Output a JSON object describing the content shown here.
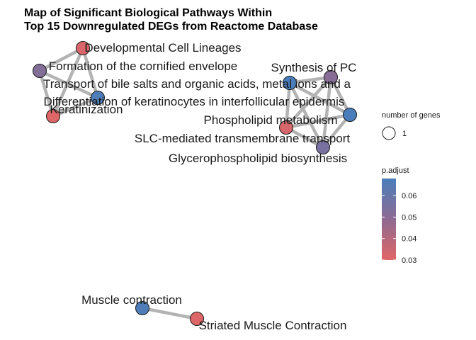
{
  "chart_data": {
    "type": "network",
    "title_lines": [
      "Map of Significant Biological Pathways Within",
      "Top 15 Downregulated DEGs from Reactome Database"
    ],
    "nodes": [
      {
        "id": "dcl",
        "label": "Developmental Cell Lineages",
        "p_adjust": 0.032
      },
      {
        "id": "fce",
        "label": "Formation of the cornified envelope",
        "p_adjust": 0.052
      },
      {
        "id": "tbs",
        "label": "Transport of bile salts and organic acids, metal ions and a",
        "p_adjust": 0.067
      },
      {
        "id": "dki",
        "label": "Differentiation of keratinocytes in interfollicular epidermis",
        "p_adjust": 0.068
      },
      {
        "id": "ker",
        "label": "Keratinization",
        "p_adjust": 0.031
      },
      {
        "id": "spc",
        "label": "Synthesis of PC",
        "p_adjust": 0.051
      },
      {
        "id": "pm",
        "label": "Phospholipid metabolism",
        "p_adjust": 0.068
      },
      {
        "id": "slc",
        "label": "SLC-mediated transmembrane transport",
        "p_adjust": 0.032
      },
      {
        "id": "gpb",
        "label": "Glycerophospholipid biosynthesis",
        "p_adjust": 0.055
      },
      {
        "id": "mc",
        "label": "Muscle contraction",
        "p_adjust": 0.067
      },
      {
        "id": "smc",
        "label": "Striated Muscle Contraction",
        "p_adjust": 0.031
      }
    ],
    "edges": [
      [
        "dcl",
        "fce"
      ],
      [
        "dcl",
        "ker"
      ],
      [
        "dcl",
        "tbs"
      ],
      [
        "fce",
        "ker"
      ],
      [
        "fce",
        "tbs"
      ],
      [
        "ker",
        "tbs"
      ],
      [
        "spc",
        "slc"
      ],
      [
        "spc",
        "pm"
      ],
      [
        "spc",
        "gpb"
      ],
      [
        "spc",
        "dki"
      ],
      [
        "slc",
        "pm"
      ],
      [
        "slc",
        "gpb"
      ],
      [
        "slc",
        "dki"
      ],
      [
        "pm",
        "gpb"
      ],
      [
        "pm",
        "dki"
      ],
      [
        "gpb",
        "dki"
      ],
      [
        "mc",
        "smc"
      ]
    ],
    "legend_size": {
      "title": "number of genes",
      "values": [
        1
      ]
    },
    "legend_color": {
      "title": "p.adjust",
      "ticks": [
        0.03,
        0.04,
        0.05,
        0.06
      ],
      "range": [
        0.03,
        0.068
      ],
      "low_color": "#e06666",
      "high_color": "#4a7ebb"
    }
  }
}
